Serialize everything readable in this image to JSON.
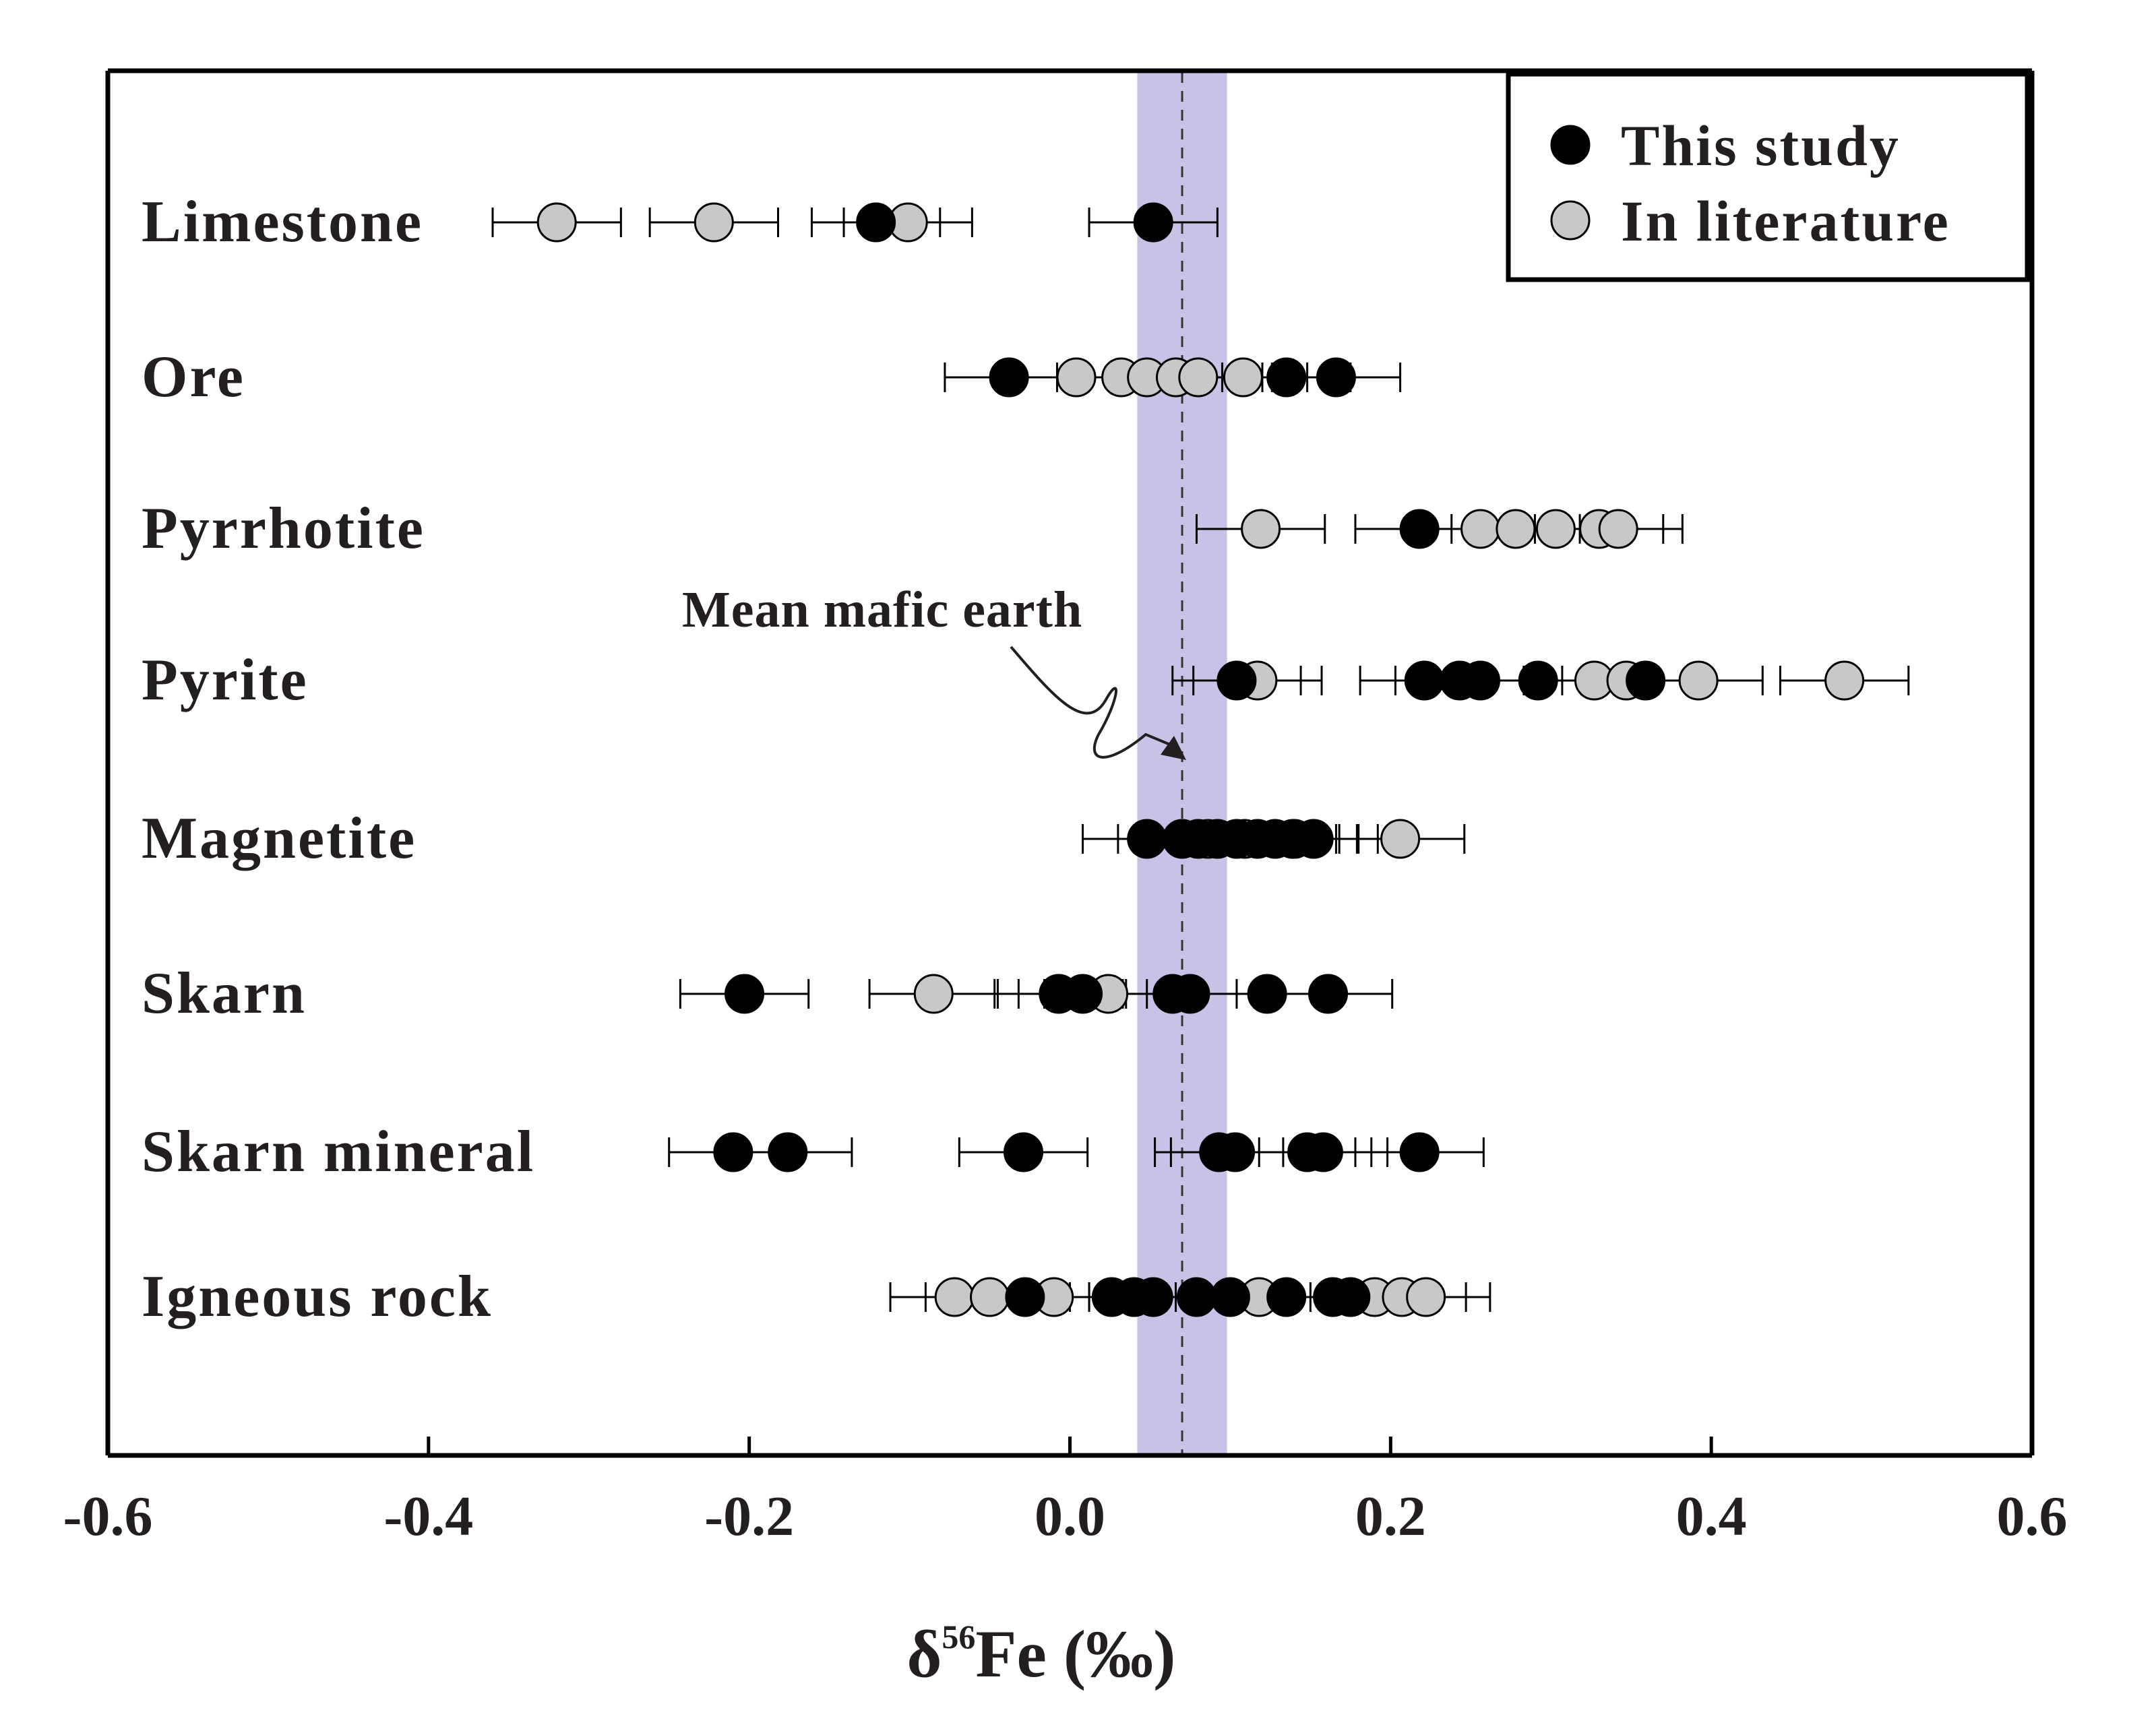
{
  "chart_data": {
    "type": "scatter",
    "title": "",
    "xlabel": "δ56Fe (‰)",
    "xlabel_parts": {
      "symbol": "δ",
      "superscript": "56",
      "element": "Fe",
      "unit": "(‰)"
    },
    "ylabel": "",
    "xlim": [
      -0.6,
      0.6
    ],
    "x_ticks": [
      -0.6,
      -0.4,
      -0.2,
      0.0,
      0.2,
      0.4,
      0.6
    ],
    "x_tick_labels": [
      "-0.6",
      "-0.4",
      "-0.2",
      "0.0",
      "0.2",
      "0.4",
      "0.6"
    ],
    "grid": false,
    "legend_position": "top-right",
    "categories": [
      "Limestone",
      "Ore",
      "Pyrrhotite",
      "Pyrite",
      "Magnetite",
      "Skarn",
      "Skarn mineral",
      "Igneous rock"
    ],
    "error_bar": 0.04,
    "band": {
      "label": "Mean mafic earth",
      "center": 0.07,
      "low": 0.042,
      "high": 0.098
    },
    "series": [
      {
        "name": "This study",
        "marker_color": "#000000",
        "points": {
          "Limestone": [
            -0.121,
            0.052
          ],
          "Ore": [
            -0.038,
            0.135,
            0.166
          ],
          "Pyrrhotite": [
            0.218
          ],
          "Pyrite": [
            0.104,
            0.221,
            0.243,
            0.256,
            0.292,
            0.359
          ],
          "Magnetite": [
            0.048,
            0.07,
            0.08,
            0.092,
            0.104,
            0.117,
            0.128,
            0.14,
            0.152
          ],
          "Skarn": [
            -0.203,
            -0.007,
            0.008,
            0.064,
            0.075,
            0.123,
            0.161
          ],
          "Skarn mineral": [
            -0.21,
            -0.176,
            -0.029,
            0.093,
            0.103,
            0.148,
            0.158,
            0.218
          ],
          "Igneous rock": [
            -0.028,
            0.026,
            0.04,
            0.052,
            0.079,
            0.1,
            0.135,
            0.164,
            0.175
          ]
        }
      },
      {
        "name": "In literature",
        "marker_color": "#c8c8c8",
        "points": {
          "Limestone": [
            -0.32,
            -0.222,
            -0.101
          ],
          "Ore": [
            0.004,
            0.032,
            0.048,
            0.066,
            0.08,
            0.108
          ],
          "Pyrrhotite": [
            0.119,
            0.256,
            0.278,
            0.303,
            0.33,
            0.342
          ],
          "Pyrite": [
            0.117,
            0.327,
            0.347,
            0.392,
            0.483
          ],
          "Magnetite": [
            0.086,
            0.109,
            0.139,
            0.206
          ],
          "Skarn": [
            -0.085,
            0.024
          ],
          "Skarn mineral": [],
          "Igneous rock": [
            -0.072,
            -0.05,
            -0.01,
            0.118,
            0.19,
            0.207,
            0.222
          ]
        }
      }
    ]
  }
}
